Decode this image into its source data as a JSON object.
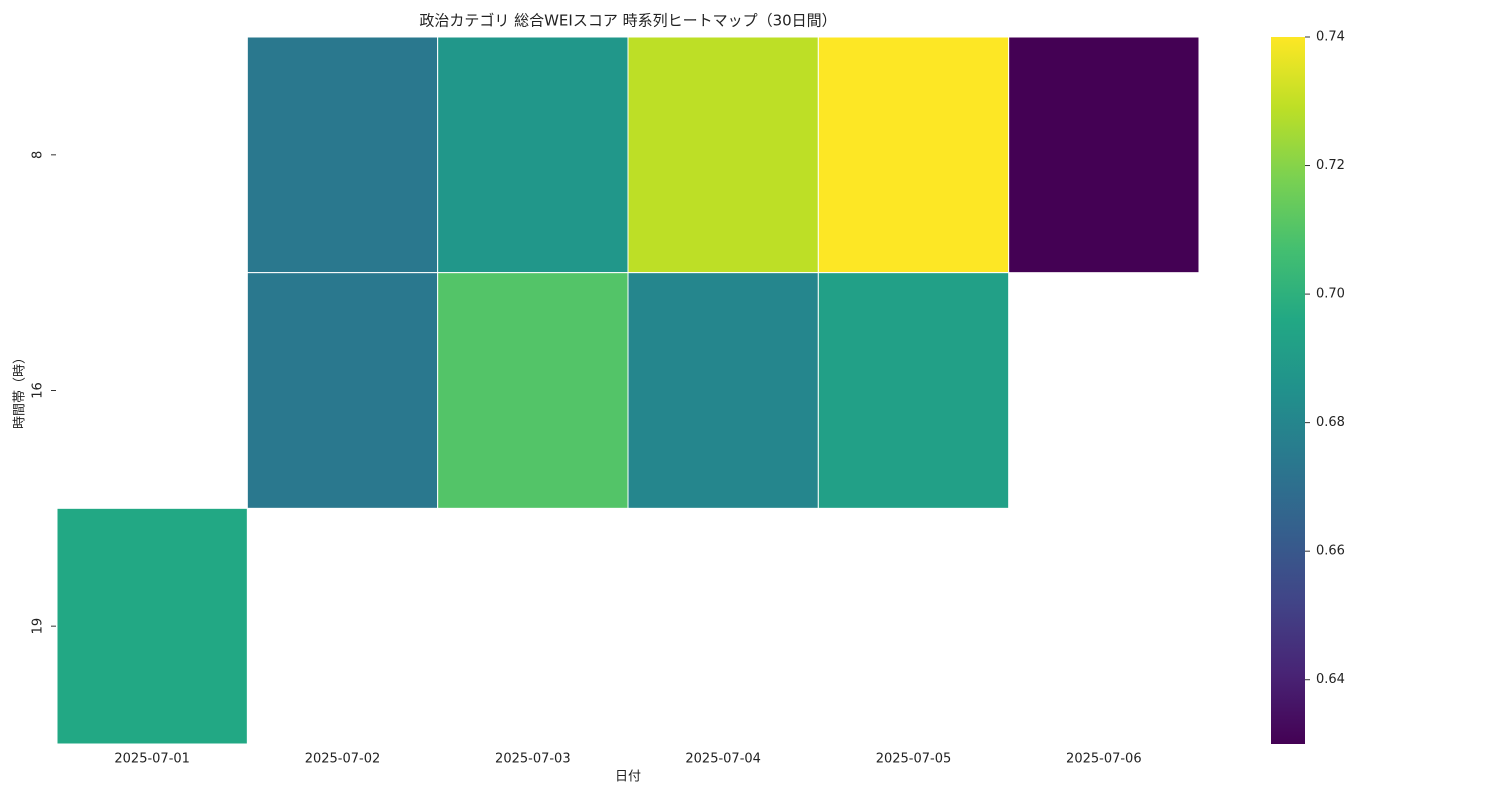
{
  "chart_data": {
    "type": "heatmap",
    "title": "政治カテゴリ 総合WEIスコア 時系列ヒートマップ（30日間）",
    "xlabel": "日付",
    "ylabel": "時間帯（時）",
    "x": [
      "2025-07-01",
      "2025-07-02",
      "2025-07-03",
      "2025-07-04",
      "2025-07-05",
      "2025-07-06"
    ],
    "y": [
      "8",
      "16",
      "19"
    ],
    "values": [
      [
        null,
        0.674,
        0.688,
        0.729,
        0.74,
        0.63
      ],
      [
        null,
        0.674,
        0.71,
        0.68,
        0.692,
        null
      ],
      [
        0.696,
        null,
        null,
        null,
        null,
        null
      ]
    ],
    "colormap": [
      "#440154",
      "#482475",
      "#414487",
      "#355f8d",
      "#2a788e",
      "#21918c",
      "#22a884",
      "#44bf70",
      "#7ad151",
      "#bddf26",
      "#fde725"
    ],
    "clim": [
      0.63,
      0.74
    ],
    "colorbar_ticks": [
      0.64,
      0.66,
      0.68,
      {
        "value": 0.7,
        "label": "0.70"
      },
      0.72,
      0.74
    ]
  }
}
